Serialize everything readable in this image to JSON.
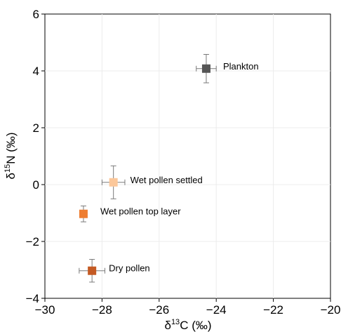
{
  "chart_data": {
    "type": "scatter",
    "title": "",
    "xlabel": {
      "pre": "δ",
      "sup": "13",
      "post": "C (‰)"
    },
    "ylabel": {
      "pre": "δ",
      "sup": "15",
      "post": "N (‰)"
    },
    "xlim": [
      -30,
      -20
    ],
    "ylim": [
      -4,
      6
    ],
    "xticks": [
      {
        "value": -30,
        "label": "−30"
      },
      {
        "value": -28,
        "label": "−28"
      },
      {
        "value": -26,
        "label": "−26"
      },
      {
        "value": -24,
        "label": "−24"
      },
      {
        "value": -22,
        "label": "−22"
      },
      {
        "value": -20,
        "label": "−20"
      }
    ],
    "yticks": [
      {
        "value": -4,
        "label": "−4"
      },
      {
        "value": -2,
        "label": "−2"
      },
      {
        "value": 0,
        "label": "0"
      },
      {
        "value": 2,
        "label": "2"
      },
      {
        "value": 4,
        "label": "4"
      },
      {
        "value": 6,
        "label": "6"
      }
    ],
    "grid": true,
    "points": [
      {
        "label": "Plankton",
        "x": -24.35,
        "y": 4.08,
        "xerr": 0.35,
        "yerr": 0.5,
        "color": "#555555"
      },
      {
        "label": "Wet pollen settled",
        "x": -27.6,
        "y": 0.08,
        "xerr": 0.4,
        "yerr": 0.58,
        "color": "#fbc79a"
      },
      {
        "label": "Wet pollen top layer",
        "x": -28.65,
        "y": -1.03,
        "xerr": 0.0,
        "yerr": 0.28,
        "color": "#ee7d31"
      },
      {
        "label": "Dry pollen",
        "x": -28.35,
        "y": -3.03,
        "xerr": 0.45,
        "yerr": 0.4,
        "color": "#c45a23"
      }
    ]
  }
}
